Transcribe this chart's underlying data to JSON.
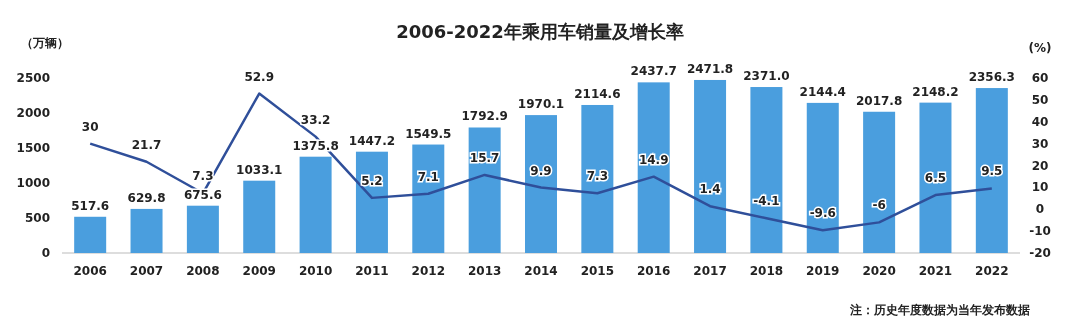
{
  "chart_data": {
    "type": "bar",
    "title": "2006-2022年乘用车销量及增长率",
    "ylabel": "（万辆）",
    "y2label": "(%)",
    "annotations": [
      "注：历史年度数据为当年发布数据"
    ],
    "categories": [
      "2006",
      "2007",
      "2008",
      "2009",
      "2010",
      "2011",
      "2012",
      "2013",
      "2014",
      "2015",
      "2016",
      "2017",
      "2018",
      "2019",
      "2020",
      "2021",
      "2022"
    ],
    "series": [
      {
        "color": "#4a9ede",
        "values": [
          517.6,
          629.8,
          675.6,
          1033.1,
          1375.8,
          1447.2,
          1549.5,
          1792.9,
          1970.1,
          2114.6,
          2437.7,
          2471.8,
          2371.0,
          2144.4,
          2017.8,
          2148.2,
          2356.3
        ],
        "value_labels": [
          "517.6",
          "629.8",
          "675.6",
          "1033.1",
          "1375.8",
          "1447.2",
          "1549.5",
          "1792.9",
          "1970.1",
          "2114.6",
          "2437.7",
          "2471.8",
          "2371.0",
          "2144.4",
          "2017.8",
          "2148.2",
          "2356.3"
        ]
      },
      {
        "type": "line",
        "axis": "y2",
        "color": "#2f4f9a",
        "values": [
          30,
          21.7,
          7.3,
          52.9,
          33.2,
          5.2,
          7.1,
          15.7,
          9.9,
          7.3,
          14.9,
          1.4,
          -4.1,
          -9.6,
          -6,
          6.5,
          9.5
        ]
      }
    ],
    "data_labels": true,
    "ylim": [
      0,
      2500
    ],
    "yticks": [
      0,
      500,
      1000,
      1500,
      2000,
      2500
    ],
    "y2lim": [
      -20,
      60
    ],
    "y2ticks": [
      -20,
      -10,
      0,
      10,
      20,
      30,
      40,
      50,
      60
    ],
    "grid": false
  }
}
